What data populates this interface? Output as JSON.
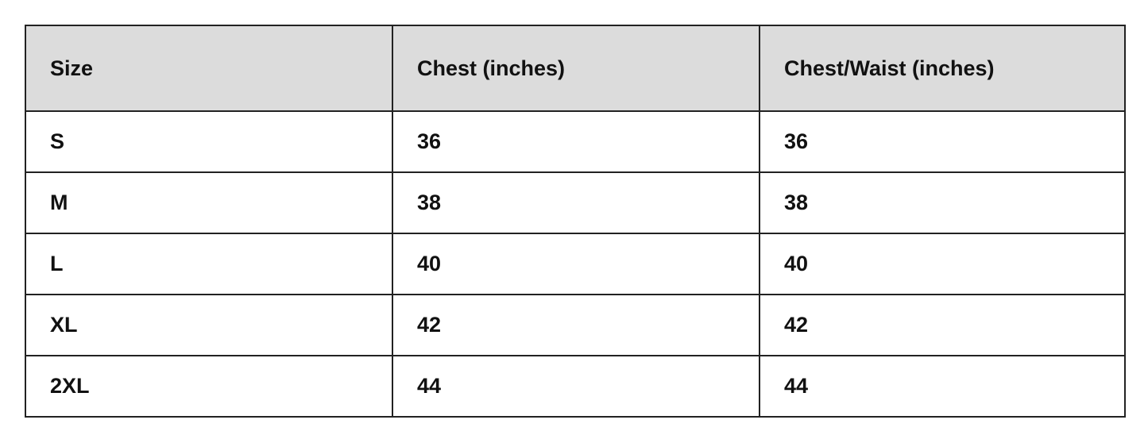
{
  "table": {
    "headers": [
      "Size",
      "Chest (inches)",
      "Chest/Waist (inches)"
    ],
    "rows": [
      [
        "S",
        "36",
        "36"
      ],
      [
        "M",
        "38",
        "38"
      ],
      [
        "L",
        "40",
        "40"
      ],
      [
        "XL",
        "42",
        "42"
      ],
      [
        "2XL",
        "44",
        "44"
      ]
    ],
    "header_bg": "#dcdcdc",
    "border_color": "#222222"
  }
}
